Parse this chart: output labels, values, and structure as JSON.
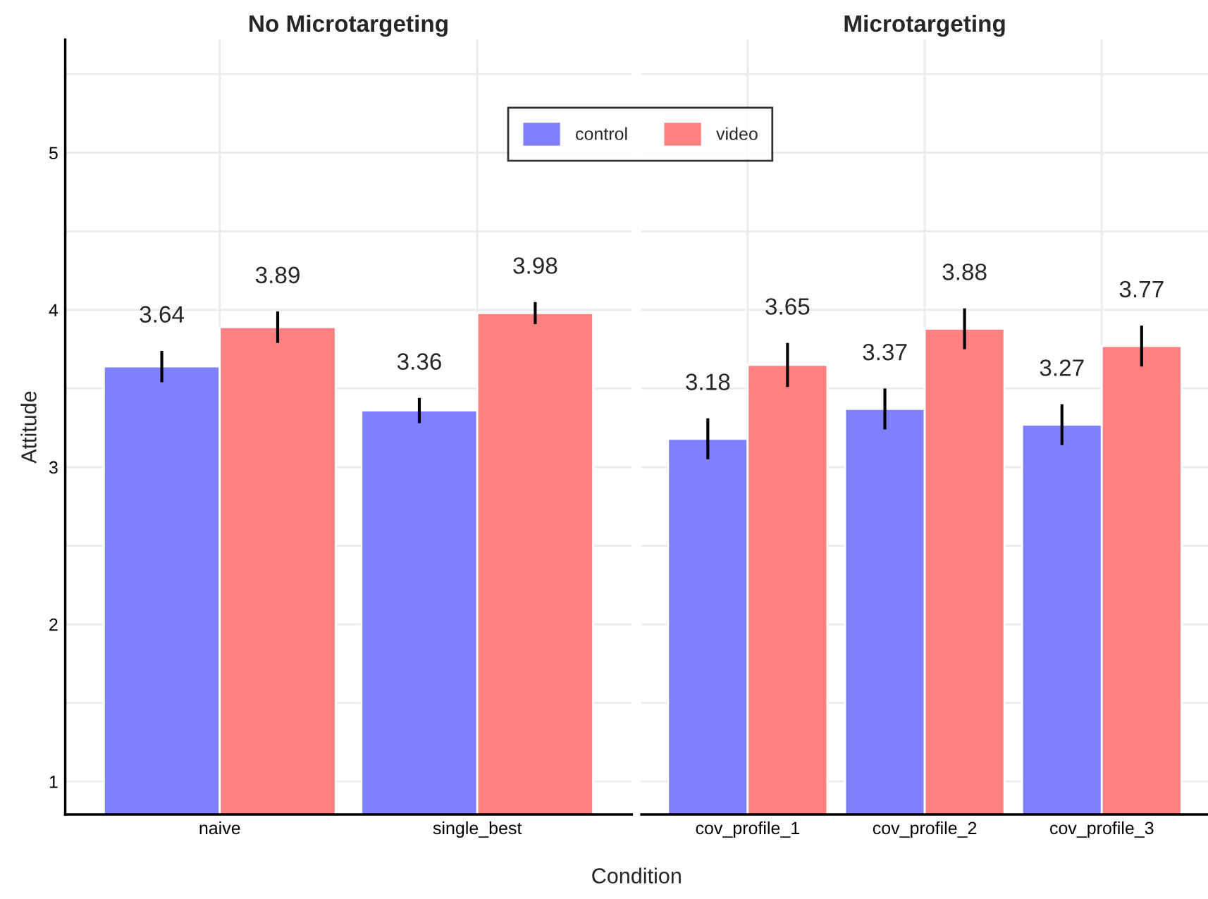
{
  "chart_data": [
    {
      "type": "bar",
      "title": "No Microtargeting",
      "xlabel": "Condition",
      "ylabel": "Attitude",
      "categories": [
        "naive",
        "single_best"
      ],
      "series": [
        {
          "name": "control",
          "color": "#8080ff",
          "values": [
            3.64,
            3.36
          ],
          "errors": [
            0.1,
            0.08
          ]
        },
        {
          "name": "video",
          "color": "#ff8080",
          "values": [
            3.89,
            3.98
          ],
          "errors": [
            0.1,
            0.07
          ]
        }
      ],
      "ylim": [
        0.79,
        5.72
      ],
      "yticks": [
        1,
        {
          "value": 1.5,
          "label": null
        },
        2,
        {
          "value": 2.5,
          "label": null
        },
        3,
        {
          "value": 3.5,
          "label": null
        },
        4,
        {
          "value": 4.5,
          "label": null
        },
        5,
        {
          "value": 5.5,
          "label": null
        }
      ],
      "grid": true,
      "data_labels": true,
      "legend": "top"
    },
    {
      "type": "bar",
      "title": "Microtargeting",
      "categories": [
        "cov_profile_1",
        "cov_profile_2",
        "cov_profile_3"
      ],
      "series": [
        {
          "color": "#8080ff",
          "values": [
            3.18,
            3.37,
            3.27
          ],
          "errors": [
            0.13,
            0.13,
            0.13
          ]
        },
        {
          "color": "#ff8080",
          "values": [
            3.65,
            3.88,
            3.77
          ],
          "errors": [
            0.14,
            0.13,
            0.13
          ]
        }
      ],
      "ylim": [
        0.79,
        5.72
      ],
      "yticks": [
        1,
        {
          "value": 1.5,
          "label": null
        },
        2,
        {
          "value": 2.5,
          "label": null
        },
        3,
        {
          "value": 3.5,
          "label": null
        },
        4,
        {
          "value": 4.5,
          "label": null
        },
        5,
        {
          "value": 5.5,
          "label": null
        }
      ],
      "grid": true,
      "data_labels": true,
      "tick_labels": "x"
    }
  ]
}
